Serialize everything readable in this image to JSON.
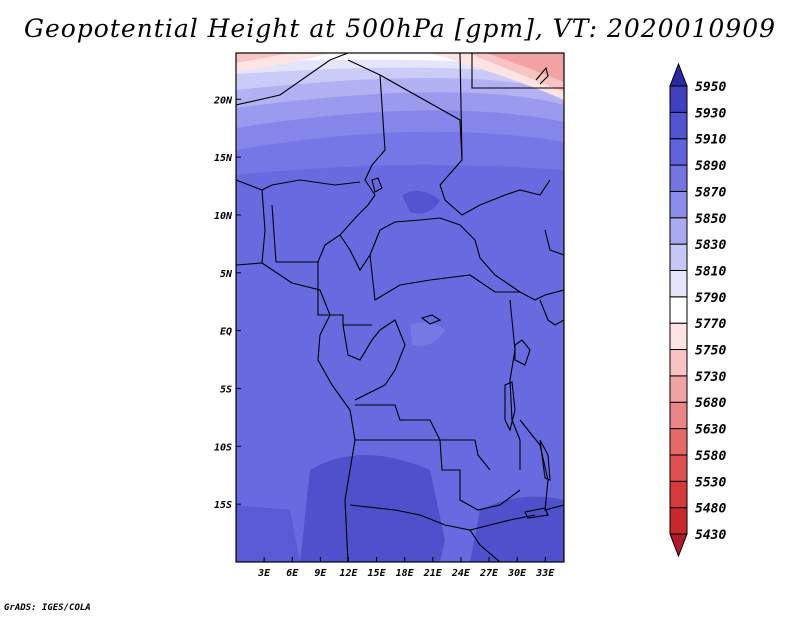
{
  "title": "Geopotential Height at 500hPa [gpm], VT: 2020010909",
  "credit": "GrADS: IGES/COLA",
  "chart_data": {
    "type": "heatmap",
    "variable": "Geopotential Height at 500hPa",
    "units": "gpm",
    "valid_time": "2020010909",
    "lon_range": [
      0,
      35
    ],
    "lat_range": [
      -20,
      24
    ],
    "x_tick_labels": [
      "3E",
      "6E",
      "9E",
      "12E",
      "15E",
      "18E",
      "21E",
      "24E",
      "27E",
      "30E",
      "33E"
    ],
    "x_tick_values": [
      3,
      6,
      9,
      12,
      15,
      18,
      21,
      24,
      27,
      30,
      33
    ],
    "y_tick_labels": [
      "20N",
      "15N",
      "10N",
      "5N",
      "EQ",
      "5S",
      "10S",
      "15S"
    ],
    "y_tick_values": [
      20,
      15,
      10,
      5,
      0,
      -5,
      -10,
      -15
    ],
    "colorbar": {
      "levels": [
        5430,
        5480,
        5530,
        5580,
        5630,
        5680,
        5730,
        5750,
        5770,
        5790,
        5810,
        5830,
        5850,
        5870,
        5890,
        5910,
        5930,
        5950
      ],
      "colors": [
        "#b2182b",
        "#c8272c",
        "#d6393a",
        "#df4f4f",
        "#e56969",
        "#ec8585",
        "#f2a2a2",
        "#f8c3c3",
        "#fde3e3",
        "#ffffff",
        "#e4e4fb",
        "#c7c7f6",
        "#aaaaf1",
        "#8d8deb",
        "#7474e3",
        "#6262dc",
        "#5454d2",
        "#4141c0",
        "#2a2aa6"
      ]
    }
  }
}
